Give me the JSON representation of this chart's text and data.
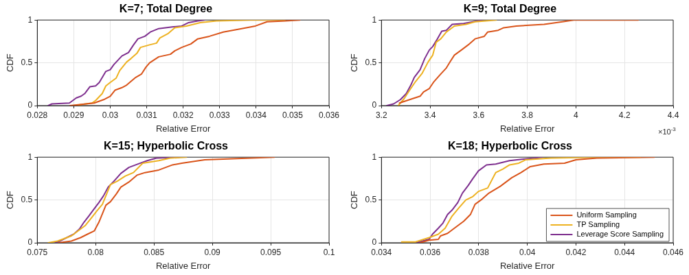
{
  "chart_data": [
    {
      "type": "line",
      "title": "K=7; Total Degree",
      "xlabel": "Relative Error",
      "ylabel": "CDF",
      "xlim": [
        0.028,
        0.036
      ],
      "xticks": [
        0.028,
        0.029,
        0.03,
        0.031,
        0.032,
        0.033,
        0.034,
        0.035,
        0.036
      ],
      "ylim": [
        0,
        1
      ],
      "yticks": [
        0,
        0.5,
        1
      ],
      "grid": true,
      "legend": false,
      "marker": "none",
      "line_style": "solid",
      "series": [
        {
          "color": "#d95319",
          "x": [
            0.0289,
            0.02956,
            0.02982,
            0.03,
            0.03013,
            0.03032,
            0.03045,
            0.0307,
            0.03086,
            0.03098,
            0.03108,
            0.03133,
            0.03165,
            0.03177,
            0.03196,
            0.03221,
            0.0324,
            0.03272,
            0.0331,
            0.03348,
            0.03398,
            0.0343,
            0.0348,
            0.0352
          ],
          "values": [
            0,
            0.03,
            0.07,
            0.11,
            0.18,
            0.21,
            0.24,
            0.33,
            0.37,
            0.45,
            0.5,
            0.57,
            0.6,
            0.64,
            0.68,
            0.72,
            0.78,
            0.81,
            0.86,
            0.89,
            0.93,
            0.98,
            0.99,
            1
          ]
        },
        {
          "color": "#edb120",
          "x": [
            0.029,
            0.0295,
            0.0296,
            0.02978,
            0.02988,
            0.03,
            0.03016,
            0.03026,
            0.03045,
            0.03057,
            0.03073,
            0.03083,
            0.03108,
            0.03127,
            0.03136,
            0.03158,
            0.03177,
            0.03209,
            0.03247,
            0.03291,
            0.03385,
            0.03479
          ],
          "values": [
            0,
            0.03,
            0.06,
            0.14,
            0.23,
            0.27,
            0.32,
            0.41,
            0.51,
            0.55,
            0.61,
            0.68,
            0.71,
            0.73,
            0.79,
            0.84,
            0.91,
            0.93,
            0.97,
            0.99,
            1,
            1
          ]
        },
        {
          "color": "#7e2f8e",
          "x": [
            0.0283,
            0.0284,
            0.02888,
            0.02907,
            0.0292,
            0.0293,
            0.02944,
            0.0296,
            0.0297,
            0.02988,
            0.03,
            0.0301,
            0.03032,
            0.0305,
            0.03064,
            0.03076,
            0.03095,
            0.0311,
            0.03133,
            0.0317,
            0.03196,
            0.03215,
            0.0324,
            0.03258
          ],
          "values": [
            0,
            0.02,
            0.03,
            0.09,
            0.11,
            0.14,
            0.22,
            0.23,
            0.27,
            0.4,
            0.42,
            0.48,
            0.58,
            0.62,
            0.71,
            0.78,
            0.81,
            0.86,
            0.9,
            0.92,
            0.93,
            0.97,
            0.99,
            1
          ]
        }
      ]
    },
    {
      "type": "line",
      "title": "K=9; Total Degree",
      "xlabel": "Relative Error",
      "ylabel": "CDF",
      "xlim": [
        3.2,
        4.4
      ],
      "xticks": [
        3.2,
        3.4,
        3.6,
        3.8,
        4,
        4.2,
        4.4
      ],
      "ylim": [
        0,
        1
      ],
      "yticks": [
        0,
        0.5,
        1
      ],
      "grid": true,
      "legend": false,
      "marker": "none",
      "line_style": "solid",
      "annotations": [
        "×10$^{-3}$"
      ],
      "series": [
        {
          "color": "#d95319",
          "x": [
            3.274,
            3.316,
            3.359,
            3.373,
            3.397,
            3.416,
            3.444,
            3.467,
            3.482,
            3.5,
            3.529,
            3.557,
            3.585,
            3.623,
            3.637,
            3.68,
            3.703,
            3.755,
            3.869,
            3.944,
            3.991,
            4.256
          ],
          "values": [
            0.03,
            0.07,
            0.11,
            0.16,
            0.2,
            0.28,
            0.37,
            0.44,
            0.51,
            0.59,
            0.65,
            0.71,
            0.78,
            0.81,
            0.86,
            0.88,
            0.91,
            0.93,
            0.95,
            0.98,
            1,
            1
          ]
        },
        {
          "color": "#edb120",
          "x": [
            3.269,
            3.293,
            3.316,
            3.34,
            3.368,
            3.392,
            3.411,
            3.425,
            3.444,
            3.467,
            3.5,
            3.548,
            3.585,
            3.672
          ],
          "values": [
            0,
            0.08,
            0.18,
            0.28,
            0.38,
            0.51,
            0.59,
            0.74,
            0.78,
            0.86,
            0.93,
            0.95,
            0.98,
            1
          ]
        },
        {
          "color": "#7e2f8e",
          "x": [
            3.222,
            3.25,
            3.278,
            3.302,
            3.321,
            3.335,
            3.359,
            3.378,
            3.397,
            3.411,
            3.43,
            3.448,
            3.467,
            3.491,
            3.538,
            3.576,
            3.614
          ],
          "values": [
            0,
            0.02,
            0.07,
            0.14,
            0.24,
            0.33,
            0.42,
            0.55,
            0.65,
            0.69,
            0.78,
            0.87,
            0.88,
            0.95,
            0.96,
            0.98,
            1
          ]
        }
      ]
    },
    {
      "type": "line",
      "title": "K=15; Hyperbolic Cross",
      "xlabel": "Relative Error",
      "ylabel": "CDF",
      "xlim": [
        0.075,
        0.1
      ],
      "xticks": [
        0.075,
        0.08,
        0.085,
        0.09,
        0.095,
        0.1
      ],
      "ylim": [
        0,
        1
      ],
      "yticks": [
        0,
        0.5,
        1
      ],
      "grid": true,
      "legend": false,
      "marker": "none",
      "line_style": "solid",
      "series": [
        {
          "color": "#d95319",
          "x": [
            0.07683,
            0.07792,
            0.07871,
            0.0793,
            0.07989,
            0.08028,
            0.08058,
            0.08088,
            0.08127,
            0.08177,
            0.08216,
            0.08285,
            0.08354,
            0.08423,
            0.08541,
            0.08659,
            0.08738,
            0.08935,
            0.09132,
            0.0933,
            0.09531
          ],
          "values": [
            0,
            0.02,
            0.06,
            0.1,
            0.14,
            0.24,
            0.34,
            0.44,
            0.48,
            0.57,
            0.65,
            0.71,
            0.79,
            0.82,
            0.85,
            0.91,
            0.93,
            0.97,
            0.98,
            0.99,
            1
          ]
        },
        {
          "color": "#edb120",
          "x": [
            0.07595,
            0.07674,
            0.07792,
            0.07851,
            0.0791,
            0.07969,
            0.08009,
            0.08058,
            0.08088,
            0.08127,
            0.08186,
            0.08255,
            0.08324,
            0.08403,
            0.08541,
            0.0864,
            0.08778
          ],
          "values": [
            0,
            0.02,
            0.08,
            0.14,
            0.2,
            0.3,
            0.37,
            0.45,
            0.55,
            0.68,
            0.72,
            0.78,
            0.82,
            0.93,
            0.96,
            0.99,
            1
          ]
        },
        {
          "color": "#7e2f8e",
          "x": [
            0.07654,
            0.07693,
            0.07752,
            0.07812,
            0.07861,
            0.079,
            0.0794,
            0.07989,
            0.08028,
            0.08068,
            0.08107,
            0.08157,
            0.08216,
            0.08285,
            0.08383,
            0.08442,
            0.08521,
            0.08718
          ],
          "values": [
            0,
            0.02,
            0.06,
            0.1,
            0.16,
            0.24,
            0.31,
            0.4,
            0.47,
            0.55,
            0.65,
            0.72,
            0.81,
            0.88,
            0.93,
            0.96,
            0.99,
            1
          ]
        }
      ]
    },
    {
      "type": "line",
      "title": "K=18; Hyperbolic Cross",
      "xlabel": "Relative Error",
      "ylabel": "CDF",
      "xlim": [
        0.034,
        0.046
      ],
      "xticks": [
        0.034,
        0.036,
        0.038,
        0.04,
        0.042,
        0.044,
        0.046
      ],
      "ylim": [
        0,
        1
      ],
      "yticks": [
        0,
        0.5,
        1
      ],
      "grid": true,
      "legend": "bottom right",
      "marker": "none",
      "line_style": "solid",
      "series": [
        {
          "name": "Uniform Sampling",
          "color": "#d95319",
          "x": [
            0.03559,
            0.03596,
            0.03634,
            0.03643,
            0.03672,
            0.037,
            0.03738,
            0.03766,
            0.03785,
            0.03814,
            0.03842,
            0.03889,
            0.03936,
            0.03974,
            0.04012,
            0.04068,
            0.04153,
            0.042,
            0.04286,
            0.04522
          ],
          "values": [
            0,
            0.03,
            0.04,
            0.08,
            0.11,
            0.17,
            0.25,
            0.33,
            0.45,
            0.51,
            0.58,
            0.66,
            0.76,
            0.82,
            0.89,
            0.92,
            0.93,
            0.97,
            0.99,
            1
          ]
        },
        {
          "name": "TP Sampling",
          "color": "#edb120",
          "x": [
            0.03483,
            0.0354,
            0.03596,
            0.03634,
            0.03662,
            0.0369,
            0.03719,
            0.03747,
            0.03776,
            0.03799,
            0.03837,
            0.0387,
            0.03899,
            0.03927,
            0.03965,
            0.03993,
            0.04097,
            0.04286,
            0.04465
          ],
          "values": [
            0.01,
            0.01,
            0.06,
            0.1,
            0.17,
            0.31,
            0.41,
            0.5,
            0.54,
            0.6,
            0.64,
            0.82,
            0.86,
            0.91,
            0.93,
            0.97,
            0.99,
            1,
            1
          ]
        },
        {
          "name": "Leverage Score Sampling",
          "color": "#7e2f8e",
          "x": [
            0.03544,
            0.03568,
            0.03596,
            0.0361,
            0.03634,
            0.03653,
            0.03672,
            0.0369,
            0.03714,
            0.03733,
            0.03757,
            0.03776,
            0.03799,
            0.03832,
            0.0387,
            0.03927,
            0.03993,
            0.04061
          ],
          "values": [
            0,
            0.02,
            0.04,
            0.1,
            0.17,
            0.23,
            0.33,
            0.38,
            0.47,
            0.58,
            0.67,
            0.75,
            0.84,
            0.91,
            0.92,
            0.96,
            0.98,
            1
          ]
        }
      ]
    }
  ]
}
